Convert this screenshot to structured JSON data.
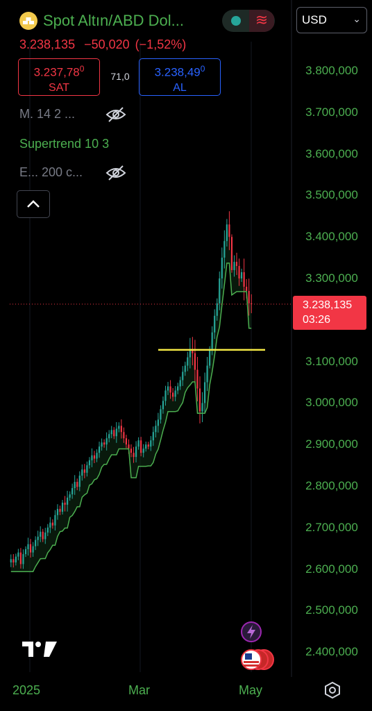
{
  "header": {
    "title": "Spot Altın/ABD Dol...",
    "logo_icon": "gold-bars-icon",
    "status": {
      "market_icon": "market-open-dot-icon",
      "wave_icon": "chart-wave-icon"
    },
    "currency": "USD"
  },
  "quote": {
    "last": "3.238,135",
    "change": "−50,020",
    "change_pct": "(−1,52%)",
    "sell": {
      "price": "3.237,78",
      "price_sup": "0",
      "label": "SAT"
    },
    "buy": {
      "price": "3.238,49",
      "price_sup": "0",
      "label": "AL"
    },
    "spread": "71,0"
  },
  "indicators": [
    {
      "label": "M. 14 2 ...",
      "hidden": true,
      "icon": "eye-off-icon"
    },
    {
      "label": "Supertrend 10 3",
      "hidden": false
    },
    {
      "label": "E... 200 c...",
      "hidden": true,
      "icon": "eye-off-icon"
    }
  ],
  "collapse_icon": "chevron-up-icon",
  "price_tag": {
    "price": "3.238,135",
    "countdown": "03:26"
  },
  "colors": {
    "up": "#26a69a",
    "down": "#f23645",
    "accent": "#4caf50",
    "hline": "#f5e945"
  },
  "chart_data": {
    "type": "candlestick",
    "y_axis": {
      "labels": [
        "3.800,000",
        "3.700,000",
        "3.600,000",
        "3.500,000",
        "3.400,000",
        "3.300,000",
        "3.100,000",
        "3.000,000",
        "2.900,000",
        "2.800,000",
        "2.700,000",
        "2.600,000",
        "2.500,000",
        "2.400,000"
      ],
      "values": [
        3800,
        3700,
        3600,
        3500,
        3400,
        3300,
        3100,
        3000,
        2900,
        2800,
        2700,
        2600,
        2500,
        2400
      ],
      "range": [
        2390,
        3830
      ]
    },
    "x_axis": {
      "labels": [
        "2025",
        "Mar",
        "May"
      ]
    },
    "last_price": 3238.135,
    "horizontal_line": 3128,
    "indicator": "Supertrend 10 3",
    "series_daily_close": [
      2624,
      2616,
      2630,
      2640,
      2612,
      2636,
      2648,
      2660,
      2640,
      2655,
      2670,
      2678,
      2690,
      2672,
      2688,
      2700,
      2712,
      2705,
      2730,
      2745,
      2738,
      2760,
      2755,
      2772,
      2780,
      2795,
      2810,
      2798,
      2825,
      2840,
      2832,
      2850,
      2862,
      2874,
      2866,
      2880,
      2895,
      2905,
      2900,
      2915,
      2925,
      2935,
      2920,
      2938,
      2945,
      2930,
      2915,
      2900,
      2890,
      2880,
      2870,
      2895,
      2910,
      2880,
      2890,
      2900,
      2895,
      2910,
      2930,
      2945,
      2960,
      2985,
      3005,
      3030,
      3040,
      3025,
      3015,
      3030,
      3040,
      3055,
      3075,
      3090,
      3110,
      3130,
      3120,
      3080,
      3035,
      2980,
      3000,
      3050,
      3090,
      3130,
      3170,
      3210,
      3240,
      3300,
      3350,
      3390,
      3430,
      3400,
      3320,
      3340,
      3330,
      3300,
      3315,
      3280,
      3270,
      3240,
      3238.135
    ],
    "timeframe": "1D"
  }
}
